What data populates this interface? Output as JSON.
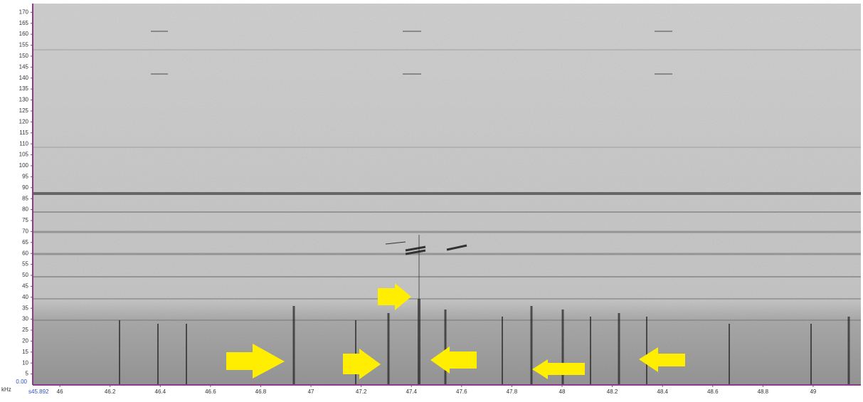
{
  "chart_data": {
    "type": "spectrogram",
    "y_unit": "kHz",
    "origin_label": "0.00",
    "start_label": "s45.892",
    "xlim": [
      45.892,
      49.19
    ],
    "ylim": [
      0,
      174
    ],
    "xticks": [
      46,
      46.2,
      46.4,
      46.6,
      46.8,
      47,
      47.2,
      47.4,
      47.6,
      47.8,
      48,
      48.2,
      48.4,
      48.6,
      48.8,
      49
    ],
    "yticks": [
      5,
      10,
      15,
      20,
      25,
      30,
      35,
      40,
      45,
      50,
      55,
      60,
      65,
      70,
      75,
      80,
      85,
      90,
      95,
      100,
      105,
      110,
      115,
      120,
      125,
      130,
      135,
      140,
      145,
      150,
      155,
      160,
      165,
      170
    ]
  }
}
